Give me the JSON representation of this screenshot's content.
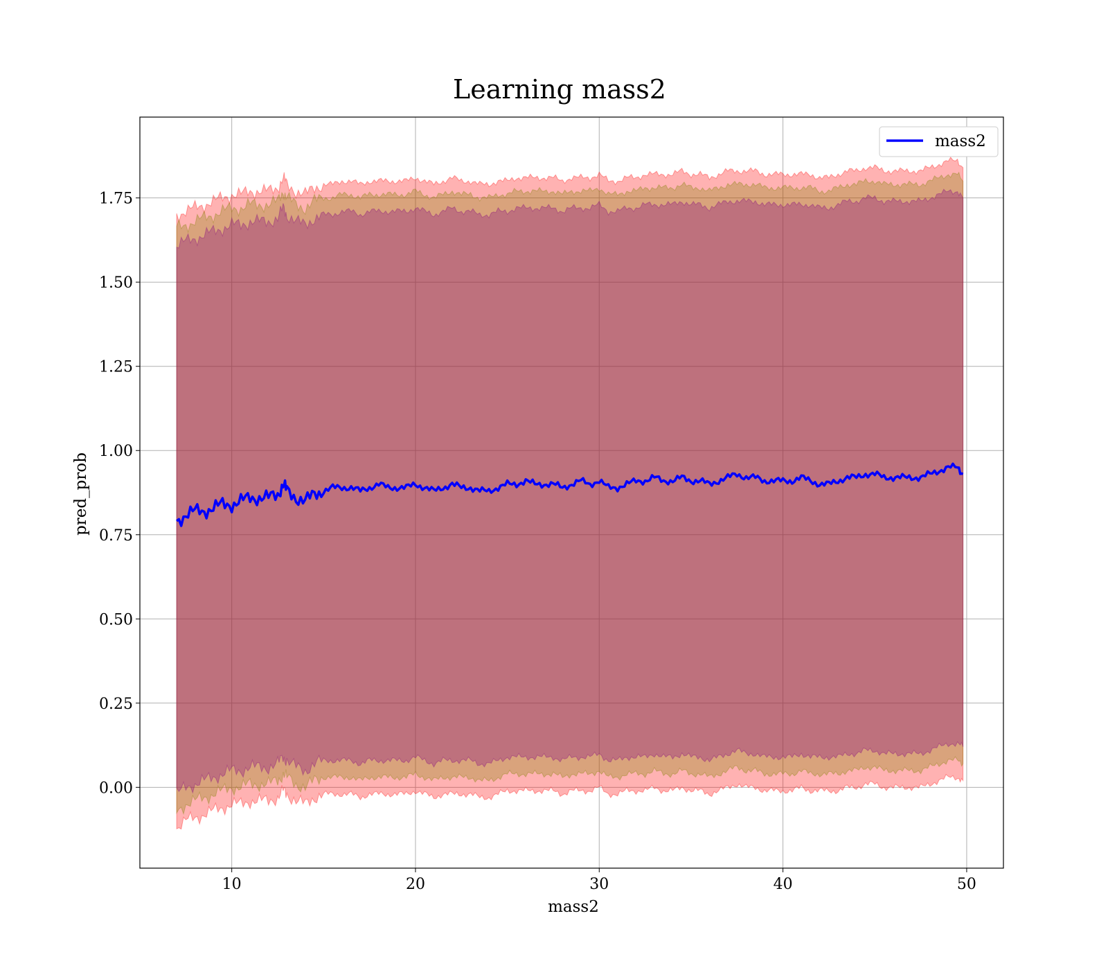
{
  "chart_data": {
    "type": "line",
    "title": "Learning mass2",
    "xlabel": "mass2",
    "ylabel": "pred_prob",
    "xlim": [
      5,
      52
    ],
    "ylim": [
      -0.24,
      1.99
    ],
    "grid": true,
    "legend_position": "top-right",
    "x_ticks": [
      10,
      20,
      30,
      40,
      50
    ],
    "x_tick_labels": [
      "10",
      "20",
      "30",
      "40",
      "50"
    ],
    "y_ticks": [
      0.0,
      0.25,
      0.5,
      0.75,
      1.0,
      1.25,
      1.5,
      1.75
    ],
    "y_tick_labels": [
      "0.00",
      "0.25",
      "0.50",
      "0.75",
      "1.00",
      "1.25",
      "1.50",
      "1.75"
    ],
    "series": [
      {
        "name": "mass2",
        "color": "#0000ff",
        "x": [
          7,
          7.5,
          8,
          8.5,
          9,
          9.5,
          10,
          10.5,
          11,
          11.5,
          12,
          12.5,
          12.8,
          13,
          13.5,
          14,
          14.5,
          15,
          15.5,
          16,
          16.5,
          17,
          17.5,
          18,
          18.5,
          19,
          19.5,
          20,
          20.5,
          21,
          21.5,
          22,
          22.5,
          23,
          23.5,
          24,
          24.5,
          25,
          25.5,
          26,
          26.5,
          27,
          27.5,
          28,
          28.5,
          29,
          29.5,
          30,
          30.5,
          31,
          31.5,
          32,
          32.5,
          33,
          33.5,
          34,
          34.5,
          35,
          35.5,
          36,
          36.5,
          37,
          37.5,
          38,
          38.5,
          39,
          39.5,
          40,
          40.5,
          41,
          41.5,
          42,
          42.5,
          43,
          43.5,
          44,
          44.5,
          45,
          45.5,
          46,
          46.5,
          47,
          47.5,
          48,
          48.5,
          49,
          49.5,
          49.8
        ],
        "y": [
          0.79,
          0.81,
          0.82,
          0.82,
          0.83,
          0.84,
          0.84,
          0.85,
          0.86,
          0.86,
          0.86,
          0.87,
          0.9,
          0.88,
          0.86,
          0.85,
          0.87,
          0.88,
          0.89,
          0.89,
          0.89,
          0.88,
          0.89,
          0.9,
          0.89,
          0.89,
          0.89,
          0.9,
          0.89,
          0.88,
          0.89,
          0.9,
          0.89,
          0.89,
          0.88,
          0.88,
          0.89,
          0.9,
          0.9,
          0.91,
          0.9,
          0.9,
          0.9,
          0.89,
          0.9,
          0.91,
          0.9,
          0.91,
          0.89,
          0.89,
          0.9,
          0.91,
          0.91,
          0.92,
          0.91,
          0.91,
          0.92,
          0.91,
          0.91,
          0.9,
          0.91,
          0.92,
          0.93,
          0.92,
          0.92,
          0.91,
          0.91,
          0.91,
          0.91,
          0.92,
          0.91,
          0.9,
          0.9,
          0.91,
          0.92,
          0.92,
          0.93,
          0.93,
          0.92,
          0.92,
          0.92,
          0.92,
          0.92,
          0.93,
          0.94,
          0.95,
          0.95,
          0.93
        ]
      }
    ],
    "bands": [
      {
        "color": "#ff0000",
        "opacity": 0.3,
        "lower": [
          -0.12,
          -0.1,
          -0.09,
          -0.08,
          -0.07,
          -0.06,
          -0.05,
          -0.05,
          -0.04,
          -0.04,
          -0.04,
          -0.03,
          -0.01,
          -0.02,
          -0.04,
          -0.05,
          -0.03,
          -0.02,
          -0.02,
          -0.02,
          -0.02,
          -0.03,
          -0.02,
          -0.02,
          -0.02,
          -0.02,
          -0.02,
          -0.01,
          -0.02,
          -0.03,
          -0.02,
          -0.02,
          -0.02,
          -0.02,
          -0.03,
          -0.03,
          -0.02,
          -0.01,
          -0.01,
          -0.01,
          -0.01,
          -0.01,
          -0.01,
          -0.02,
          -0.01,
          -0.01,
          -0.01,
          0.0,
          -0.02,
          -0.02,
          -0.01,
          -0.01,
          -0.01,
          0.0,
          -0.01,
          -0.01,
          0.0,
          -0.01,
          -0.01,
          -0.02,
          -0.01,
          0.0,
          0.01,
          0.0,
          0.0,
          -0.01,
          -0.01,
          -0.01,
          -0.01,
          0.0,
          -0.01,
          -0.01,
          -0.01,
          -0.01,
          0.0,
          0.0,
          0.01,
          0.01,
          0.0,
          0.0,
          0.0,
          0.0,
          0.0,
          0.01,
          0.02,
          0.03,
          0.03,
          0.02
        ],
        "upper": [
          1.7,
          1.71,
          1.72,
          1.73,
          1.74,
          1.75,
          1.76,
          1.76,
          1.77,
          1.77,
          1.77,
          1.78,
          1.81,
          1.79,
          1.77,
          1.76,
          1.78,
          1.79,
          1.79,
          1.8,
          1.8,
          1.79,
          1.8,
          1.8,
          1.8,
          1.8,
          1.8,
          1.81,
          1.8,
          1.79,
          1.8,
          1.81,
          1.8,
          1.8,
          1.79,
          1.79,
          1.8,
          1.8,
          1.81,
          1.81,
          1.81,
          1.81,
          1.81,
          1.8,
          1.81,
          1.81,
          1.81,
          1.82,
          1.8,
          1.8,
          1.81,
          1.81,
          1.82,
          1.82,
          1.82,
          1.82,
          1.83,
          1.82,
          1.82,
          1.81,
          1.82,
          1.83,
          1.83,
          1.83,
          1.83,
          1.82,
          1.82,
          1.82,
          1.82,
          1.82,
          1.82,
          1.81,
          1.81,
          1.82,
          1.83,
          1.83,
          1.84,
          1.84,
          1.83,
          1.83,
          1.83,
          1.83,
          1.83,
          1.84,
          1.85,
          1.86,
          1.86,
          1.84
        ]
      },
      {
        "color": "#808000",
        "opacity": 0.3,
        "lower": [
          -0.07,
          -0.05,
          -0.04,
          -0.03,
          -0.02,
          -0.01,
          0.0,
          0.0,
          0.01,
          0.01,
          0.01,
          0.02,
          0.04,
          0.03,
          0.01,
          0.0,
          0.02,
          0.03,
          0.03,
          0.03,
          0.03,
          0.02,
          0.03,
          0.03,
          0.03,
          0.03,
          0.03,
          0.04,
          0.03,
          0.02,
          0.03,
          0.03,
          0.03,
          0.03,
          0.02,
          0.02,
          0.03,
          0.04,
          0.04,
          0.04,
          0.04,
          0.04,
          0.04,
          0.03,
          0.04,
          0.04,
          0.04,
          0.05,
          0.03,
          0.03,
          0.04,
          0.04,
          0.04,
          0.05,
          0.04,
          0.04,
          0.05,
          0.04,
          0.04,
          0.03,
          0.04,
          0.05,
          0.06,
          0.05,
          0.05,
          0.04,
          0.04,
          0.04,
          0.04,
          0.05,
          0.04,
          0.04,
          0.04,
          0.04,
          0.05,
          0.05,
          0.06,
          0.06,
          0.05,
          0.05,
          0.05,
          0.05,
          0.05,
          0.06,
          0.07,
          0.08,
          0.08,
          0.07
        ],
        "upper": [
          1.66,
          1.67,
          1.68,
          1.69,
          1.7,
          1.71,
          1.72,
          1.72,
          1.73,
          1.73,
          1.73,
          1.74,
          1.77,
          1.75,
          1.73,
          1.72,
          1.74,
          1.75,
          1.75,
          1.76,
          1.76,
          1.75,
          1.76,
          1.76,
          1.76,
          1.76,
          1.76,
          1.77,
          1.76,
          1.75,
          1.76,
          1.77,
          1.76,
          1.76,
          1.75,
          1.75,
          1.76,
          1.76,
          1.77,
          1.77,
          1.77,
          1.77,
          1.77,
          1.76,
          1.77,
          1.77,
          1.77,
          1.78,
          1.76,
          1.76,
          1.77,
          1.77,
          1.78,
          1.78,
          1.78,
          1.78,
          1.79,
          1.78,
          1.78,
          1.77,
          1.78,
          1.79,
          1.79,
          1.79,
          1.79,
          1.78,
          1.78,
          1.78,
          1.78,
          1.78,
          1.78,
          1.77,
          1.77,
          1.78,
          1.79,
          1.79,
          1.8,
          1.8,
          1.79,
          1.79,
          1.79,
          1.79,
          1.79,
          1.8,
          1.81,
          1.82,
          1.82,
          1.8
        ]
      },
      {
        "color": "#800080",
        "opacity": 0.3,
        "lower": [
          -0.02,
          0.0,
          0.01,
          0.02,
          0.03,
          0.04,
          0.05,
          0.05,
          0.06,
          0.06,
          0.06,
          0.07,
          0.09,
          0.08,
          0.06,
          0.05,
          0.07,
          0.08,
          0.08,
          0.08,
          0.08,
          0.07,
          0.08,
          0.08,
          0.08,
          0.08,
          0.08,
          0.09,
          0.08,
          0.07,
          0.08,
          0.08,
          0.08,
          0.08,
          0.07,
          0.07,
          0.08,
          0.09,
          0.09,
          0.09,
          0.09,
          0.09,
          0.09,
          0.08,
          0.09,
          0.09,
          0.09,
          0.1,
          0.08,
          0.08,
          0.09,
          0.09,
          0.09,
          0.1,
          0.09,
          0.09,
          0.1,
          0.09,
          0.09,
          0.08,
          0.09,
          0.1,
          0.11,
          0.1,
          0.1,
          0.09,
          0.09,
          0.09,
          0.09,
          0.1,
          0.09,
          0.09,
          0.09,
          0.09,
          0.1,
          0.1,
          0.11,
          0.11,
          0.1,
          0.1,
          0.1,
          0.1,
          0.1,
          0.11,
          0.12,
          0.13,
          0.13,
          0.12
        ],
        "upper": [
          1.61,
          1.62,
          1.63,
          1.64,
          1.65,
          1.66,
          1.67,
          1.67,
          1.68,
          1.68,
          1.68,
          1.69,
          1.72,
          1.7,
          1.68,
          1.67,
          1.69,
          1.7,
          1.7,
          1.71,
          1.71,
          1.7,
          1.71,
          1.71,
          1.71,
          1.71,
          1.71,
          1.72,
          1.71,
          1.7,
          1.71,
          1.72,
          1.71,
          1.71,
          1.7,
          1.7,
          1.71,
          1.71,
          1.72,
          1.72,
          1.72,
          1.72,
          1.72,
          1.71,
          1.72,
          1.72,
          1.72,
          1.73,
          1.71,
          1.71,
          1.72,
          1.72,
          1.73,
          1.73,
          1.73,
          1.73,
          1.74,
          1.73,
          1.73,
          1.72,
          1.73,
          1.74,
          1.74,
          1.74,
          1.74,
          1.73,
          1.73,
          1.73,
          1.73,
          1.73,
          1.73,
          1.72,
          1.72,
          1.73,
          1.74,
          1.74,
          1.75,
          1.75,
          1.74,
          1.74,
          1.74,
          1.74,
          1.74,
          1.75,
          1.76,
          1.77,
          1.77,
          1.75
        ]
      }
    ]
  }
}
